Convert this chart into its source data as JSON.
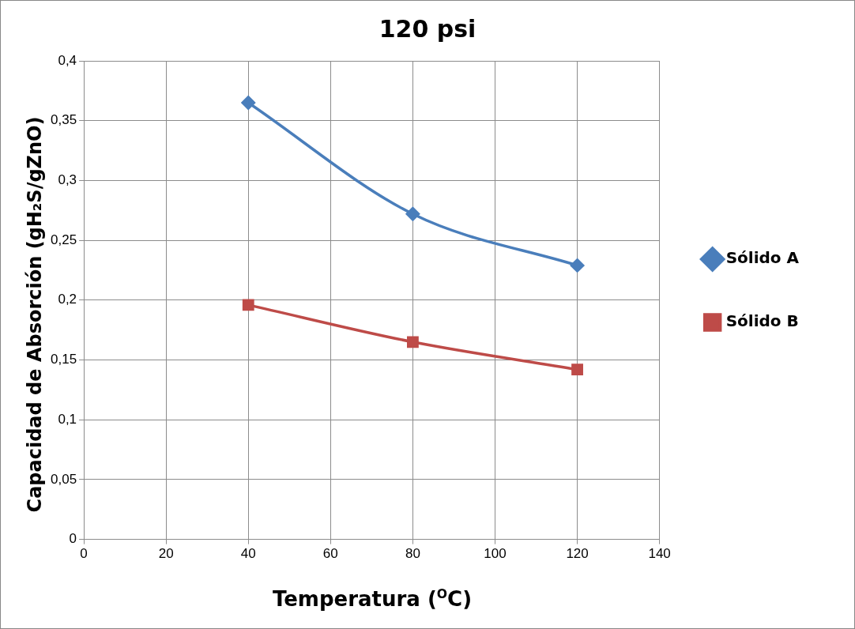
{
  "chart_data": {
    "type": "line",
    "title": "120 psi",
    "xlabel": "Temperatura ($^{O}$C)",
    "ylabel": "Capacidad de Absorción  (gH₂S/gZnO)",
    "x": [
      40,
      80,
      120
    ],
    "series": [
      {
        "name": "Sólido A",
        "color": "#4a7ebb",
        "marker": "diamond",
        "values": [
          0.365,
          0.272,
          0.229
        ]
      },
      {
        "name": "Sólido B",
        "color": "#be4b48",
        "marker": "square",
        "values": [
          0.196,
          0.165,
          0.142
        ]
      }
    ],
    "xlim": [
      0,
      140
    ],
    "xticks": [
      0,
      20,
      40,
      60,
      80,
      100,
      120,
      140
    ],
    "ylim": [
      0,
      0.4
    ],
    "yticks": [
      {
        "value": 0,
        "label": "0"
      },
      {
        "value": 0.05,
        "label": "0,05"
      },
      {
        "value": 0.1,
        "label": "0,1"
      },
      {
        "value": 0.15,
        "label": "0,15"
      },
      {
        "value": 0.2,
        "label": "0,2"
      },
      {
        "value": 0.25,
        "label": "0,25"
      },
      {
        "value": 0.3,
        "label": "0,3"
      },
      {
        "value": 0.35,
        "label": "0,35"
      },
      {
        "value": 0.4,
        "label": "0,4"
      }
    ],
    "grid": true,
    "legend": "right",
    "line_style": "solid"
  }
}
